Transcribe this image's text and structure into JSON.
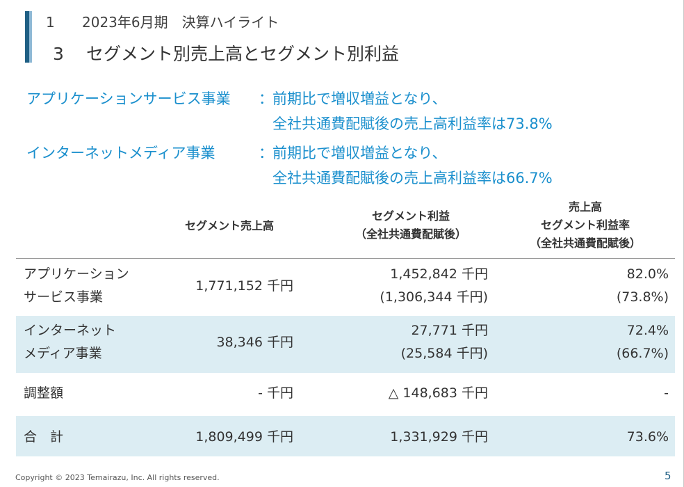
{
  "header": {
    "section_number": "1",
    "section_title": "2023年6月期　決算ハイライト",
    "sub_number": "3",
    "sub_title": "セグメント別売上高とセグメント別利益"
  },
  "highlights": [
    {
      "label": "アプリケーションサービス事業",
      "colon": "：",
      "line1": "前期比で増収増益となり、",
      "line2": "全社共通費配賦後の売上高利益率は73.8%"
    },
    {
      "label": "インターネットメディア事業",
      "colon": "：",
      "line1": "前期比で増収増益となり、",
      "line2": "全社共通費配賦後の売上高利益率は66.7%"
    }
  ],
  "table": {
    "headers": {
      "sales": "セグメント売上高",
      "profit_l1": "セグメント利益",
      "profit_l2": "（全社共通費配賦後）",
      "rate_l1": "売上高",
      "rate_l2": "セグメント利益率",
      "rate_l3": "（全社共通費配賦後）"
    },
    "rows": [
      {
        "name_l1": "アプリケーション",
        "name_l2": "サービス事業",
        "sales": "1,771,152 千円",
        "profit": "1,452,842 千円",
        "profit_alloc": "(1,306,344 千円)",
        "rate": "82.0%",
        "rate_alloc": "(73.8%)"
      },
      {
        "name_l1": "インターネット",
        "name_l2": "メディア事業",
        "sales": "38,346 千円",
        "profit": "27,771 千円",
        "profit_alloc": "(25,584 千円)",
        "rate": "72.4%",
        "rate_alloc": "(66.7%)"
      },
      {
        "name_l1": "調整額",
        "sales": "- 千円",
        "profit": "△ 148,683 千円",
        "rate": "-"
      },
      {
        "name_l1": "合　計",
        "sales": "1,809,499 千円",
        "profit": "1,331,929 千円",
        "rate": "73.6%"
      }
    ]
  },
  "footer": {
    "copyright": "Copyright © 2023 Temairazu, Inc. All rights reserved.",
    "page": "5"
  },
  "colors": {
    "accent": "#1a8fcd",
    "bar": "#1f5f84",
    "band": "#dcedf3"
  }
}
